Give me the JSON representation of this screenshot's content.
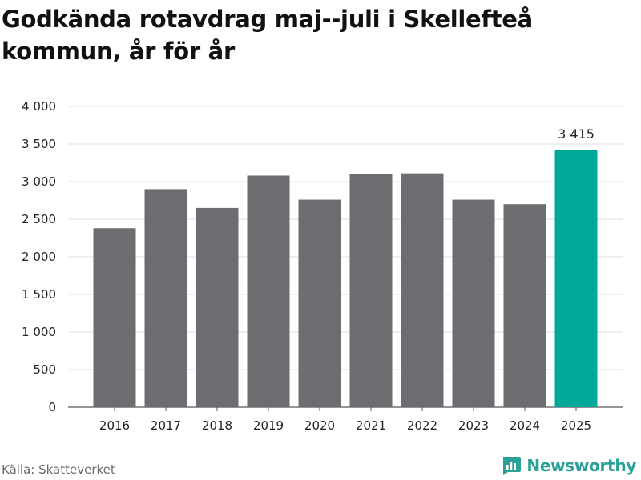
{
  "title": "Godkända rotavdrag maj--juli i Skellefteå kommun, år för år",
  "source": "Källa: Skatteverket",
  "brand": {
    "name": "Newsworthy",
    "icon": "newsworthy-logo-icon"
  },
  "colors": {
    "bar": "#6d6c71",
    "highlight": "#00a89a",
    "grid": "#dcdcdc",
    "axis": "#555555",
    "brand": "#2aa198"
  },
  "chart_data": {
    "type": "bar",
    "title": "Godkända rotavdrag maj--juli i Skellefteå kommun, år för år",
    "xlabel": "",
    "ylabel": "",
    "categories": [
      "2016",
      "2017",
      "2018",
      "2019",
      "2020",
      "2021",
      "2022",
      "2023",
      "2024",
      "2025"
    ],
    "values": [
      2380,
      2900,
      2650,
      3080,
      2760,
      3100,
      3110,
      2760,
      2700,
      3415
    ],
    "highlight_index": 9,
    "highlight_label": "3 415",
    "ylim": [
      0,
      4000
    ],
    "yticks": [
      0,
      500,
      1000,
      1500,
      2000,
      2500,
      3000,
      3500,
      4000
    ],
    "ytick_labels": [
      "0",
      "500",
      "1 000",
      "1 500",
      "2 000",
      "2 500",
      "3 000",
      "3 500",
      "4 000"
    ],
    "grid": true,
    "legend": "none"
  }
}
